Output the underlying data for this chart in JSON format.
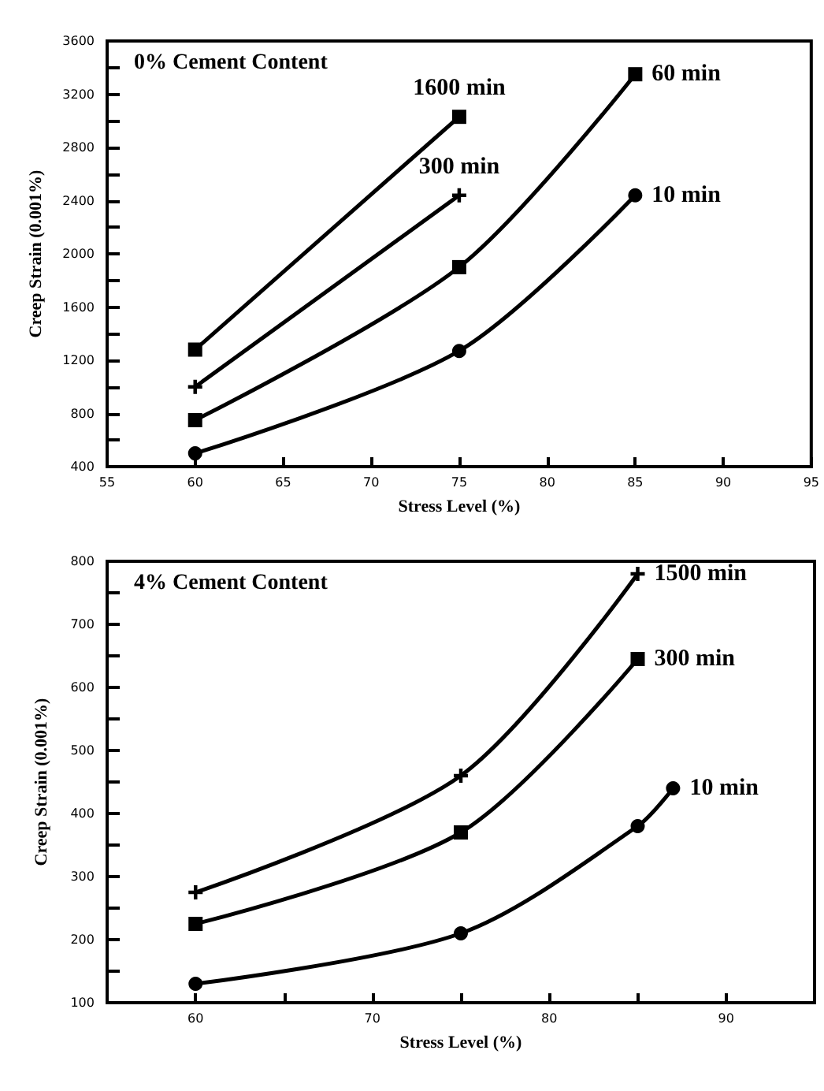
{
  "chart_data": [
    {
      "type": "line",
      "title": "0% Cement Content",
      "xlabel": "Stress Level (%)",
      "ylabel": "Creep Strain (0.001%)",
      "xlim": [
        55,
        95
      ],
      "xticks": [
        55,
        60,
        65,
        70,
        75,
        80,
        85,
        90,
        95
      ],
      "ylim": [
        400,
        3600
      ],
      "yticks": [
        400,
        {
          "value": 600,
          "label": null
        },
        800,
        {
          "value": 1000,
          "label": null
        },
        1200,
        {
          "value": 1400,
          "label": null
        },
        1600,
        {
          "value": 1800,
          "label": null
        },
        2000,
        {
          "value": 2200,
          "label": null
        },
        2400,
        {
          "value": 2600,
          "label": null
        },
        2800,
        {
          "value": 3000,
          "label": null
        },
        3200,
        {
          "value": 3400,
          "label": null
        },
        3600
      ],
      "grid": false,
      "legend": false,
      "line_style": "solid",
      "series": [
        {
          "name": "1600 min",
          "color": "#000000",
          "marker": "square",
          "x": [
            60,
            75
          ],
          "values": [
            1280,
            3030
          ]
        },
        {
          "name": "300 min",
          "color": "#000000",
          "marker": "cross",
          "x": [
            60,
            75
          ],
          "values": [
            1000,
            2440
          ]
        },
        {
          "name": "60 min",
          "color": "#000000",
          "marker": "square",
          "x": [
            60,
            75,
            85
          ],
          "values": [
            750,
            1900,
            3350
          ]
        },
        {
          "name": "10 min",
          "color": "#000000",
          "marker": "circle",
          "x": [
            60,
            75,
            85
          ],
          "values": [
            500,
            1270,
            2440
          ]
        }
      ]
    },
    {
      "type": "line",
      "title": "4% Cement Content",
      "xlabel": "Stress Level (%)",
      "ylabel": "Creep Strain (0.001%)",
      "xlim": [
        55,
        95
      ],
      "xticks": [
        60,
        {
          "value": 65,
          "label": null
        },
        70,
        {
          "value": 75,
          "label": null
        },
        80,
        {
          "value": 85,
          "label": null
        },
        90
      ],
      "ylim": [
        100,
        800
      ],
      "yticks": [
        100,
        {
          "value": 150,
          "label": null
        },
        200,
        {
          "value": 250,
          "label": null
        },
        300,
        {
          "value": 350,
          "label": null
        },
        400,
        {
          "value": 450,
          "label": null
        },
        500,
        {
          "value": 550,
          "label": null
        },
        600,
        {
          "value": 650,
          "label": null
        },
        700,
        {
          "value": 750,
          "label": null
        },
        800
      ],
      "grid": false,
      "legend": false,
      "line_style": "solid",
      "series": [
        {
          "name": "1500 min",
          "color": "#000000",
          "marker": "cross",
          "x": [
            60,
            75,
            85
          ],
          "values": [
            275,
            460,
            780
          ]
        },
        {
          "name": "300 min",
          "color": "#000000",
          "marker": "square",
          "x": [
            60,
            75,
            85
          ],
          "values": [
            225,
            370,
            645
          ]
        },
        {
          "name": "10 min",
          "color": "#000000",
          "marker": "circle",
          "x": [
            60,
            75,
            85,
            87
          ],
          "values": [
            130,
            210,
            380,
            440
          ]
        }
      ]
    }
  ]
}
